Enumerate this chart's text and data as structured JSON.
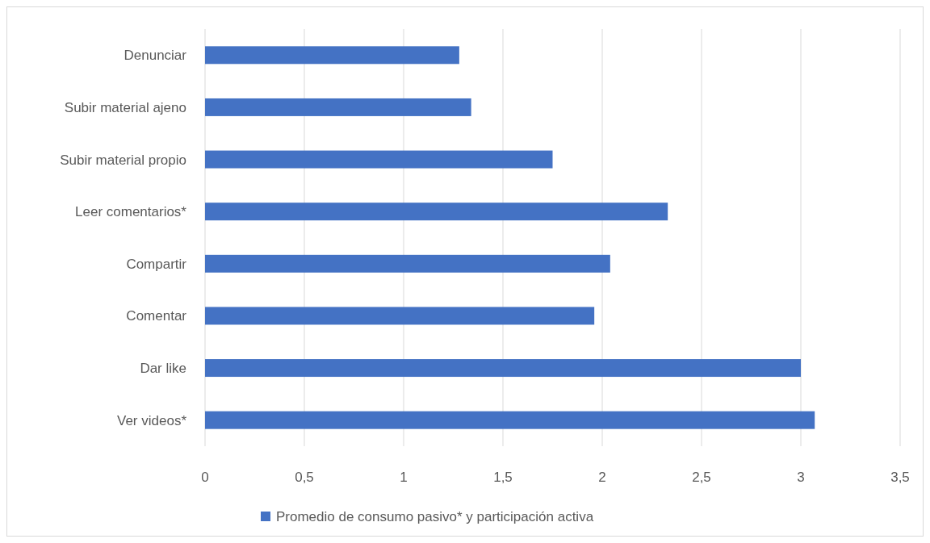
{
  "chart_data": {
    "type": "bar",
    "orientation": "horizontal",
    "categories": [
      "Denunciar",
      "Subir material ajeno",
      "Subir material propio",
      "Leer comentarios*",
      "Compartir",
      "Comentar",
      "Dar like",
      "Ver videos*"
    ],
    "series": [
      {
        "name": "Promedio de consumo pasivo* y participación activa",
        "color": "#4472c4",
        "values": [
          1.28,
          1.34,
          1.75,
          2.33,
          2.04,
          1.96,
          3.0,
          3.07
        ]
      }
    ],
    "xlim": [
      0,
      3.5
    ],
    "xticks": [
      0,
      {
        "value": 0.5,
        "label": "0,5"
      },
      1,
      {
        "value": 1.5,
        "label": "1,5"
      },
      2,
      {
        "value": 2.5,
        "label": "2,5"
      },
      3,
      {
        "value": 3.5,
        "label": "3,5"
      }
    ],
    "grid": "x",
    "legend": "bottom"
  }
}
